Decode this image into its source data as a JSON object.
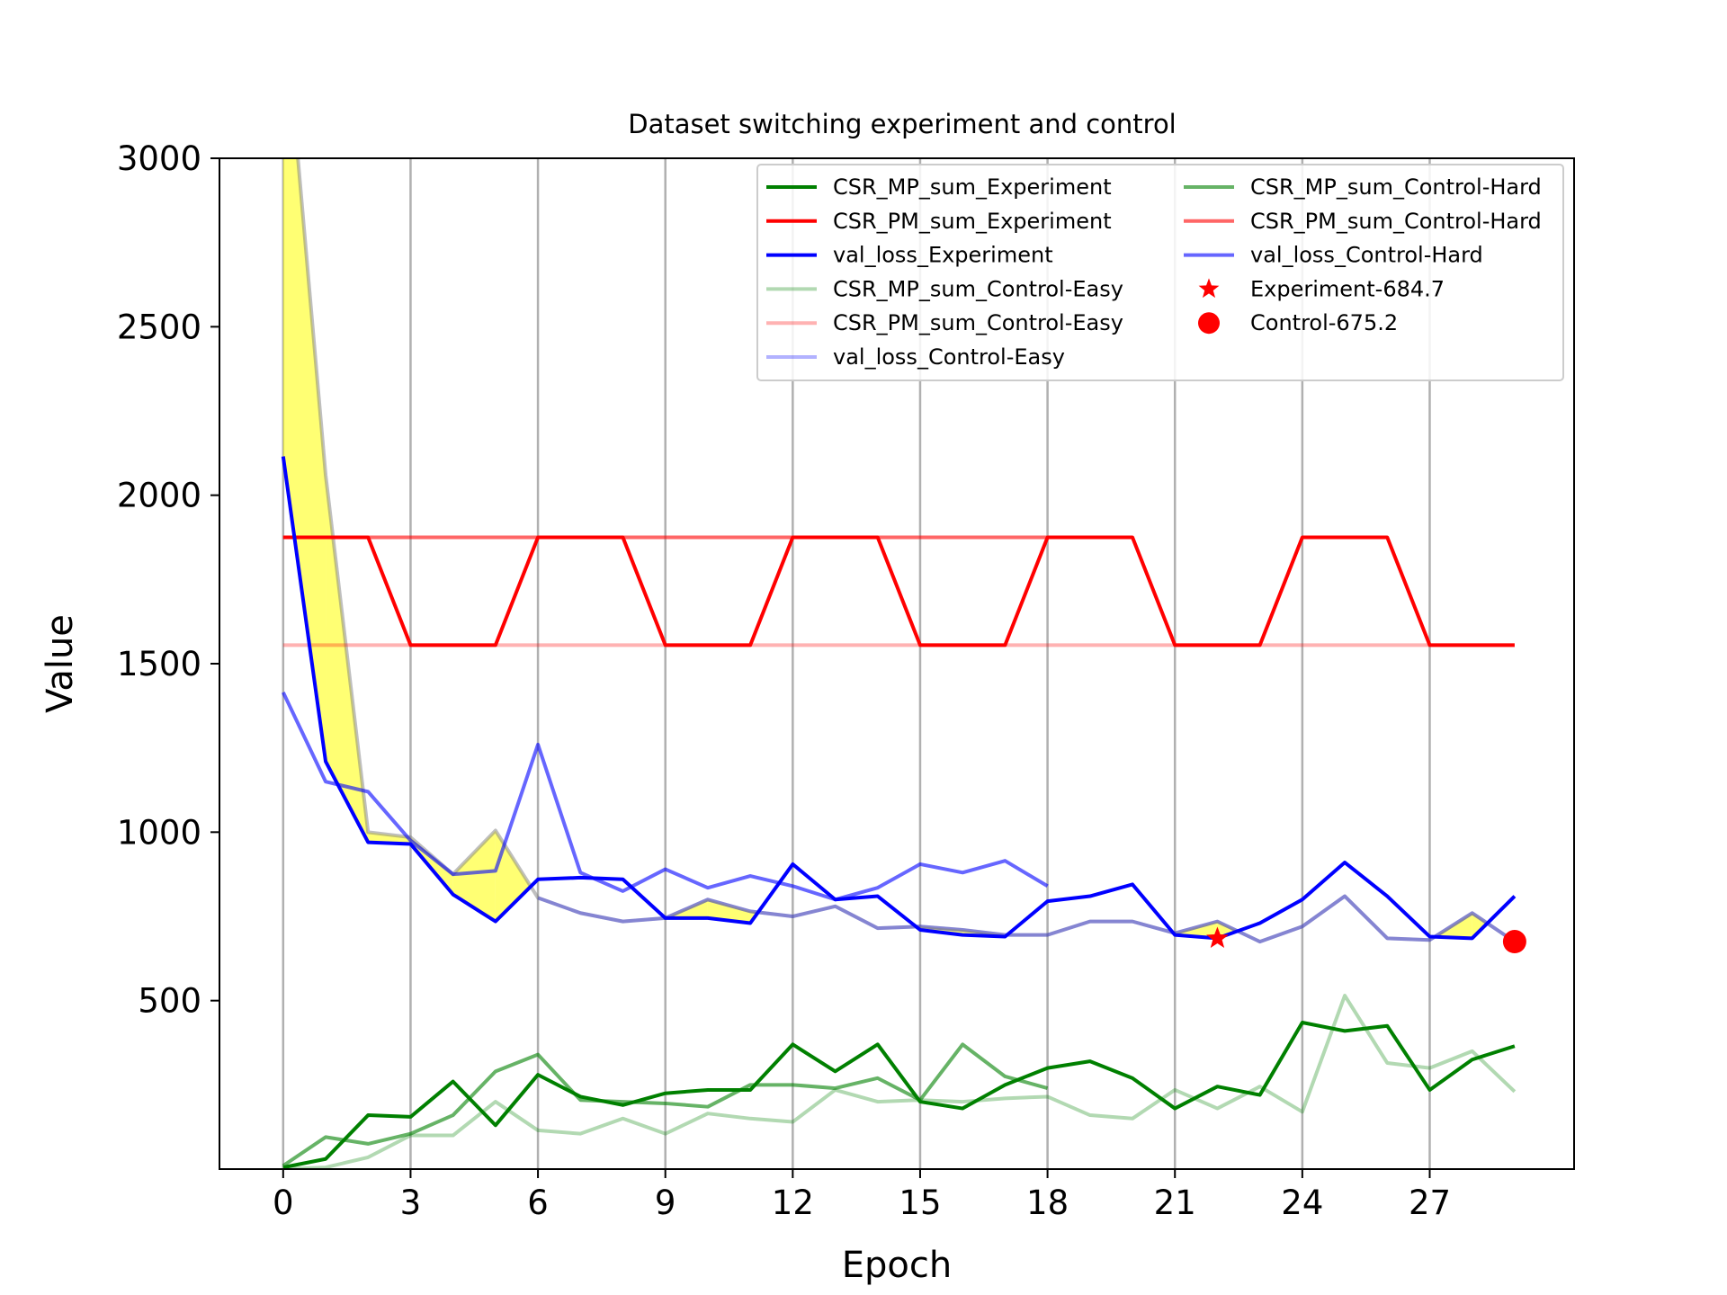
{
  "chart_data": {
    "type": "line",
    "title": "Dataset switching experiment and control",
    "xlabel": "Epoch",
    "ylabel": "Value",
    "xlim": [
      -1.5,
      30.4
    ],
    "ylim": [
      0,
      3000
    ],
    "xticks": [
      0,
      3,
      6,
      9,
      12,
      15,
      18,
      21,
      24,
      27
    ],
    "yticks": [
      500,
      1000,
      1500,
      2000,
      2500,
      3000
    ],
    "grid": "vertical",
    "vlines": [
      0,
      3,
      6,
      9,
      12,
      15,
      18,
      21,
      24,
      27
    ],
    "legend_position": "top-right",
    "shade_color": "#ffff00",
    "series": [
      {
        "name": "CSR_MP_sum_Experiment",
        "color": "#008000",
        "alpha": 1.0,
        "width": 4,
        "x": [
          0,
          1,
          2,
          3,
          4,
          5,
          6,
          7,
          8,
          9,
          10,
          11,
          12,
          13,
          14,
          15,
          16,
          17,
          18,
          19,
          20,
          21,
          22,
          23,
          24,
          25,
          26,
          27,
          28,
          29
        ],
        "y": [
          5,
          30,
          160,
          155,
          260,
          130,
          280,
          215,
          190,
          225,
          235,
          235,
          370,
          290,
          370,
          200,
          180,
          250,
          300,
          320,
          270,
          180,
          245,
          220,
          435,
          410,
          425,
          235,
          325,
          365
        ]
      },
      {
        "name": "CSR_PM_sum_Experiment",
        "color": "#ff0000",
        "alpha": 1.0,
        "width": 4,
        "x": [
          0,
          1,
          2,
          3,
          4,
          5,
          6,
          7,
          8,
          9,
          10,
          11,
          12,
          13,
          14,
          15,
          16,
          17,
          18,
          19,
          20,
          21,
          22,
          23,
          24,
          25,
          26,
          27,
          28,
          29
        ],
        "y": [
          1875,
          1875,
          1875,
          1555,
          1555,
          1555,
          1875,
          1875,
          1875,
          1555,
          1555,
          1555,
          1875,
          1875,
          1875,
          1555,
          1555,
          1555,
          1875,
          1875,
          1875,
          1555,
          1555,
          1555,
          1875,
          1875,
          1875,
          1555,
          1555,
          1555
        ]
      },
      {
        "name": "val_loss_Experiment",
        "color": "#0000ff",
        "alpha": 1.0,
        "width": 4,
        "x": [
          0,
          1,
          2,
          3,
          4,
          5,
          6,
          7,
          8,
          9,
          10,
          11,
          12,
          13,
          14,
          15,
          16,
          17,
          18,
          19,
          20,
          21,
          22,
          23,
          24,
          25,
          26,
          27,
          28,
          29
        ],
        "y": [
          2115,
          1210,
          970,
          965,
          815,
          735,
          860,
          865,
          860,
          745,
          745,
          730,
          905,
          800,
          810,
          710,
          695,
          690,
          795,
          810,
          845,
          695,
          685,
          730,
          800,
          910,
          810,
          690,
          685,
          810
        ]
      },
      {
        "name": "CSR_MP_sum_Control-Easy",
        "color": "#008000",
        "alpha": 0.3,
        "width": 4,
        "x": [
          0,
          1,
          2,
          3,
          4,
          5,
          6,
          7,
          8,
          9,
          10,
          11,
          12,
          13,
          14,
          15,
          16,
          17,
          18,
          19,
          20,
          21,
          22,
          23,
          24,
          25,
          26,
          27,
          28,
          29
        ],
        "y": [
          0,
          5,
          35,
          100,
          100,
          200,
          115,
          105,
          150,
          105,
          165,
          150,
          140,
          235,
          200,
          205,
          200,
          210,
          215,
          160,
          150,
          235,
          180,
          245,
          170,
          515,
          315,
          300,
          350,
          230
        ]
      },
      {
        "name": "CSR_PM_sum_Control-Easy",
        "color": "#ff0000",
        "alpha": 0.3,
        "width": 4,
        "x": [
          0,
          29
        ],
        "y": [
          1555,
          1555
        ]
      },
      {
        "name": "val_loss_Control-Easy",
        "color": "#0000ff",
        "alpha": 0.3,
        "width": 4,
        "x": [
          6,
          7,
          8,
          9,
          10,
          11,
          12,
          13,
          14,
          15,
          16,
          17,
          18,
          19,
          20,
          21,
          22,
          23,
          24,
          25,
          26,
          27,
          28,
          29
        ],
        "y": [
          805,
          760,
          735,
          745,
          800,
          765,
          750,
          780,
          715,
          720,
          710,
          695,
          695,
          735,
          735,
          700,
          735,
          675,
          720,
          810,
          685,
          680,
          760,
          675
        ]
      },
      {
        "name": "CSR_MP_sum_Control-Hard",
        "color": "#008000",
        "alpha": 0.6,
        "width": 4,
        "x": [
          0,
          1,
          2,
          3,
          4,
          5,
          6,
          7,
          8,
          9,
          10,
          11,
          12,
          13,
          14,
          15,
          16,
          17,
          18
        ],
        "y": [
          10,
          95,
          75,
          105,
          160,
          290,
          340,
          205,
          200,
          195,
          185,
          250,
          250,
          240,
          270,
          205,
          370,
          275,
          240
        ]
      },
      {
        "name": "CSR_PM_sum_Control-Hard",
        "color": "#ff0000",
        "alpha": 0.6,
        "width": 4,
        "x": [
          0,
          18
        ],
        "y": [
          1875,
          1875
        ]
      },
      {
        "name": "val_loss_Control-Hard",
        "color": "#0000ff",
        "alpha": 0.6,
        "width": 4,
        "x": [
          0,
          1,
          2,
          3,
          4,
          5,
          6,
          7,
          8,
          9,
          10,
          11,
          12,
          13,
          14,
          15,
          16,
          17,
          18
        ],
        "y": [
          1415,
          1150,
          1120,
          975,
          875,
          885,
          1260,
          880,
          825,
          890,
          835,
          870,
          840,
          800,
          835,
          905,
          880,
          915,
          840
        ]
      }
    ],
    "control_upper": {
      "color": "#808080",
      "alpha": 0.5,
      "x": [
        0,
        1,
        2,
        3,
        4,
        5,
        6,
        7,
        8,
        9,
        10,
        11,
        12,
        13,
        14,
        15,
        16,
        17,
        18,
        19,
        20,
        21,
        22,
        23,
        24,
        25,
        26,
        27,
        28,
        29
      ],
      "y": [
        3500,
        2060,
        1000,
        985,
        875,
        1005,
        805,
        760,
        735,
        745,
        800,
        765,
        750,
        780,
        715,
        720,
        710,
        695,
        695,
        735,
        735,
        700,
        735,
        675,
        720,
        810,
        685,
        680,
        760,
        675
      ]
    },
    "markers": [
      {
        "name": "Experiment-684.7",
        "shape": "star",
        "color": "#ff0000",
        "x": 22,
        "y": 684.7
      },
      {
        "name": "Control-675.2",
        "shape": "circle",
        "color": "#ff0000",
        "x": 29,
        "y": 675.2
      }
    ]
  }
}
